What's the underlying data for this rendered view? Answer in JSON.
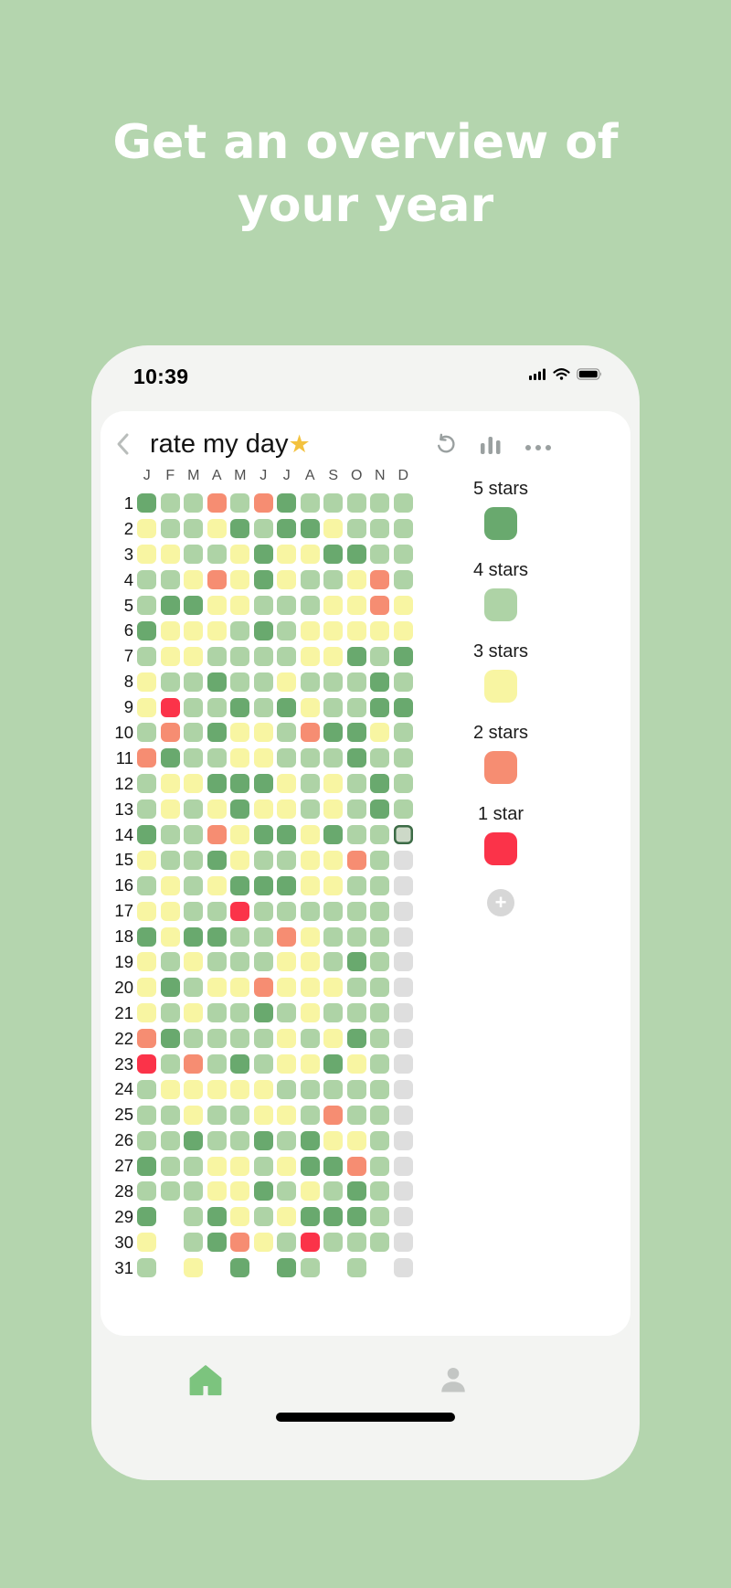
{
  "page": {
    "headline": "Get an overview of your year",
    "background_color": "#b4d5ae"
  },
  "phone": {
    "status_bar": {
      "time": "10:39",
      "icons": [
        "signal-icon",
        "wifi-icon",
        "battery-icon"
      ]
    }
  },
  "app": {
    "header": {
      "back_icon": "chevron-left",
      "title": "rate my day",
      "title_star": "⭐",
      "icons": [
        "undo-icon",
        "bar-chart-icon",
        "more-icon"
      ]
    },
    "tab_bar": {
      "items": [
        "home",
        "profile"
      ]
    }
  },
  "legend": {
    "items": [
      {
        "label": "5 stars",
        "color": "#69a96e"
      },
      {
        "label": "4 stars",
        "color": "#aed3a6"
      },
      {
        "label": "3 stars",
        "color": "#f8f5a2"
      },
      {
        "label": "2 stars",
        "color": "#f68d72"
      },
      {
        "label": "1 star",
        "color": "#fb3349"
      }
    ],
    "add_label": "+"
  },
  "chart_data": {
    "type": "heatmap",
    "title": "rate my day⭐ — year overview",
    "months": [
      "J",
      "F",
      "M",
      "A",
      "M",
      "J",
      "J",
      "A",
      "S",
      "O",
      "N",
      "D"
    ],
    "days_max": 31,
    "colors": {
      "5": "#69a96e",
      "4": "#aed3a6",
      "3": "#f8f5a2",
      "2": "#f68d72",
      "1": "#fb3349",
      "0": "#dedede"
    },
    "value_meaning": {
      "5": "5 stars",
      "4": "4 stars",
      "3": "3 stars",
      "2": "2 stars",
      "1": "1 star",
      "0": "no data / future",
      "-": "day not in month",
      "T": "today"
    },
    "today": {
      "day": 14,
      "month_index": 11,
      "fill": "#cdd9c8",
      "border": "#3c6b46"
    },
    "rows": [
      "544242544444",
      "344354553444",
      "334435335544",
      "443235344324",
      "455334443323",
      "533345433333",
      "433444433545",
      "344544344454",
      "314454534455",
      "424533425534",
      "254433444544",
      "433555343454",
      "434353343454",
      "54423553544T",
      "344534433240",
      "434355533440",
      "334414444440",
      "535544234440",
      "343444334540",
      "354332333440",
      "343445434440",
      "254444343540",
      "142454335340",
      "433333444440",
      "443443342440",
      "445445453340",
      "544334355240",
      "444335434540",
      "5-4534355540",
      "3-4523414440",
      "4-3-5-54-4-0"
    ]
  }
}
